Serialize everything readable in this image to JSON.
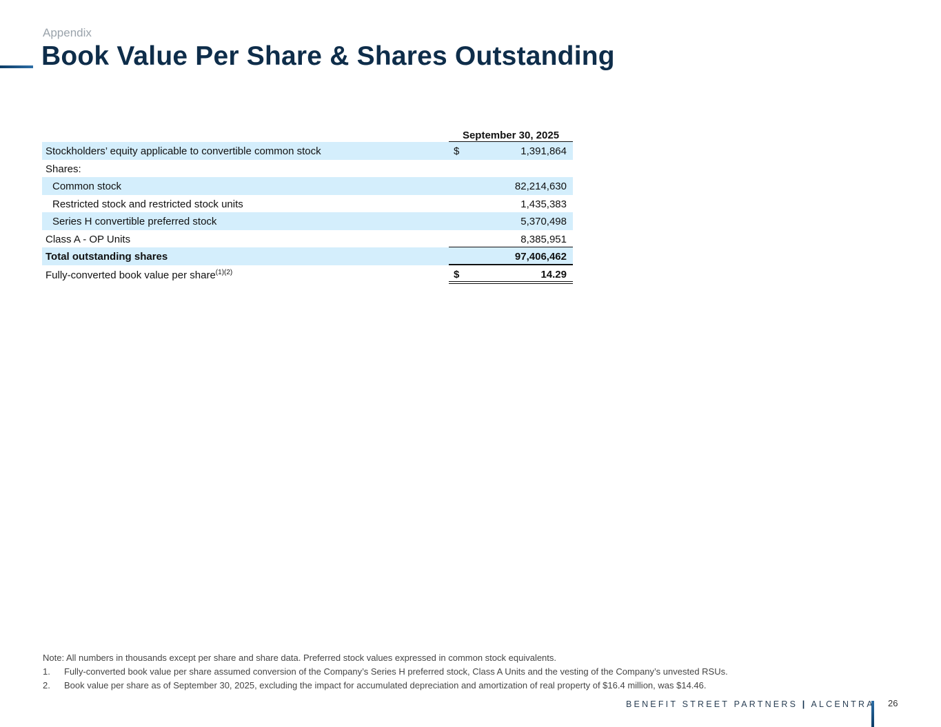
{
  "header": {
    "section": "Appendix",
    "title": "Book Value Per Share & Shares Outstanding"
  },
  "table": {
    "column_header": "September 30, 2025",
    "rows": [
      {
        "label": "Stockholders’ equity applicable to convertible common stock",
        "currency": "$",
        "value": "1,391,864"
      },
      {
        "label": "Shares:",
        "value": ""
      },
      {
        "label": "Common stock",
        "value": "82,214,630"
      },
      {
        "label": "Restricted stock and restricted stock units",
        "value": "1,435,383"
      },
      {
        "label": "Series H convertible preferred stock",
        "value": "5,370,498"
      },
      {
        "label": "Class A - OP Units",
        "value": "8,385,951"
      },
      {
        "label": "Total outstanding shares",
        "value": "97,406,462"
      },
      {
        "label": "Fully-converted book value per share",
        "superscript": "(1)(2)",
        "currency": "$",
        "value": "14.29"
      }
    ]
  },
  "notes": {
    "note": "Note: All numbers in thousands except per share and share data. Preferred stock values expressed in common stock equivalents.",
    "items": [
      {
        "num": "1.",
        "text": "Fully-converted book value per share assumed conversion of the Company’s Series H preferred stock, Class A Units and the vesting of the Company’s unvested RSUs."
      },
      {
        "num": "2.",
        "text": "Book value per share as of September 30, 2025, excluding the impact for accumulated depreciation and amortization of real property of $16.4 million, was $14.46."
      }
    ]
  },
  "footer": {
    "brand": "BENEFIT STREET PARTNERS",
    "separator": "|",
    "brand2": "ALCENTRA",
    "page_number": "26"
  }
}
